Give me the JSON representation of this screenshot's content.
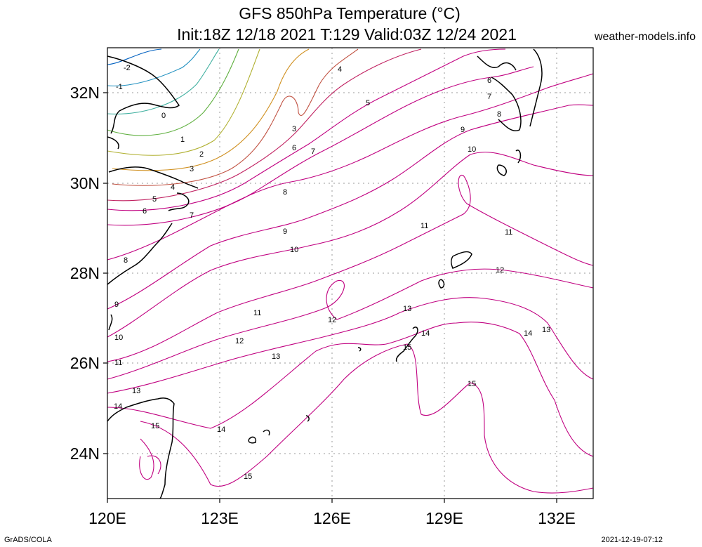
{
  "title": {
    "line1": "GFS 850hPa Temperature (°C)",
    "line2": "Init:18Z 12/18 2021 T:129 Valid:03Z 12/24 2021"
  },
  "credit": "weather-models.info",
  "footer": {
    "left": "GrADS/COLA",
    "right": "2021-12-19-07:12"
  },
  "axes": {
    "x_ticks": [
      "120E",
      "123E",
      "126E",
      "129E",
      "132E"
    ],
    "y_ticks": [
      "32N",
      "30N",
      "28N",
      "26N",
      "24N"
    ],
    "lon_range": [
      120,
      133
    ],
    "lat_range": [
      23,
      33
    ]
  },
  "contour_labels": [
    "-2",
    "-1",
    "0",
    "1",
    "2",
    "3",
    "4",
    "5",
    "6",
    "7",
    "8",
    "9",
    "10",
    "11",
    "12",
    "13",
    "14",
    "15"
  ],
  "colors": {
    "cold": "#0060c0",
    "cool": "#40b0a0",
    "mild": "#60b040",
    "warm": "#d09020",
    "hot": "#c00080",
    "coast": "#000000"
  }
}
